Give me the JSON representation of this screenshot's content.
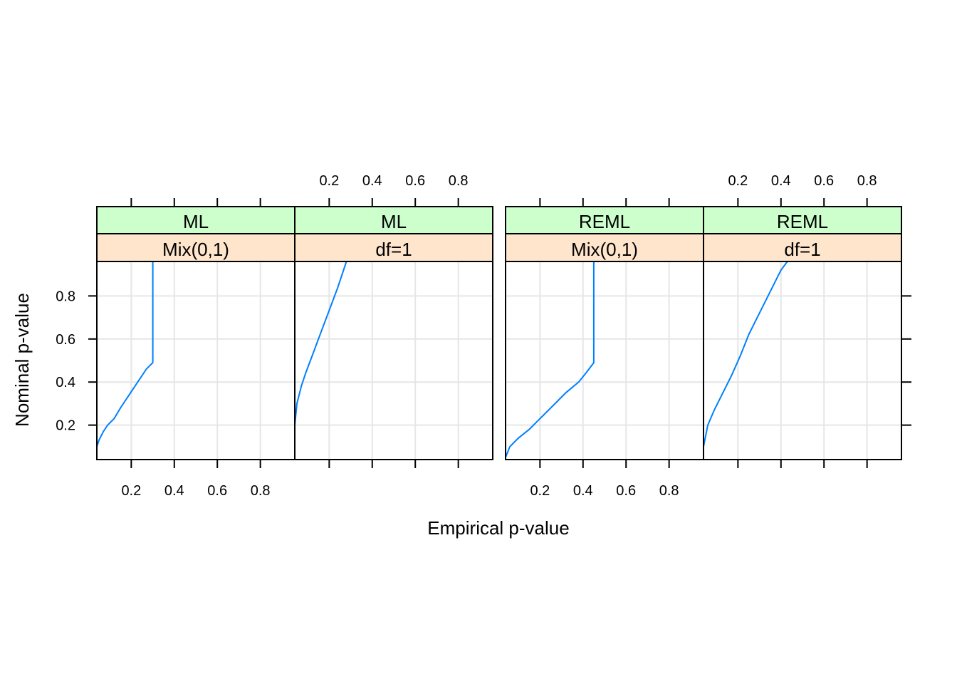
{
  "chart_data": {
    "type": "line",
    "xlabel": "Empirical p-value",
    "ylabel": "Nominal p-value",
    "xlim": [
      0.04,
      0.96
    ],
    "ylim": [
      0.04,
      0.96
    ],
    "x_ticks": [
      0.2,
      0.4,
      0.6,
      0.8
    ],
    "y_ticks": [
      0.2,
      0.4,
      0.6,
      0.8
    ],
    "tick_labels": [
      "0.2",
      "0.4",
      "0.6",
      "0.8"
    ],
    "grid": true,
    "colors": {
      "line": "#0080ff",
      "strip_top": "#ccffcc",
      "strip_bottom": "#ffe5cc",
      "grid": "#e6e6e6",
      "frame": "#000000"
    },
    "panels": [
      {
        "strip": [
          "ML",
          "Mix(0,1)"
        ],
        "x": [
          0.04,
          0.05,
          0.07,
          0.09,
          0.12,
          0.15,
          0.19,
          0.23,
          0.27,
          0.3,
          0.3
        ],
        "y": [
          0.1,
          0.13,
          0.17,
          0.2,
          0.23,
          0.28,
          0.34,
          0.4,
          0.46,
          0.49,
          0.96
        ]
      },
      {
        "strip": [
          "ML",
          "df=1"
        ],
        "x": [
          0.04,
          0.05,
          0.07,
          0.09,
          0.12,
          0.15,
          0.18,
          0.21,
          0.24,
          0.26,
          0.28
        ],
        "y": [
          0.2,
          0.3,
          0.38,
          0.44,
          0.52,
          0.6,
          0.68,
          0.76,
          0.84,
          0.9,
          0.96
        ]
      },
      {
        "strip": [
          "REML",
          "Mix(0,1)"
        ],
        "x": [
          0.04,
          0.06,
          0.1,
          0.15,
          0.2,
          0.26,
          0.32,
          0.38,
          0.42,
          0.45,
          0.45
        ],
        "y": [
          0.05,
          0.1,
          0.14,
          0.18,
          0.23,
          0.29,
          0.35,
          0.4,
          0.45,
          0.49,
          0.96
        ]
      },
      {
        "strip": [
          "REML",
          "df=1"
        ],
        "x": [
          0.04,
          0.06,
          0.09,
          0.13,
          0.17,
          0.21,
          0.25,
          0.29,
          0.33,
          0.37,
          0.4,
          0.43
        ],
        "y": [
          0.1,
          0.2,
          0.27,
          0.35,
          0.43,
          0.52,
          0.62,
          0.7,
          0.78,
          0.86,
          0.92,
          0.96
        ]
      }
    ]
  }
}
